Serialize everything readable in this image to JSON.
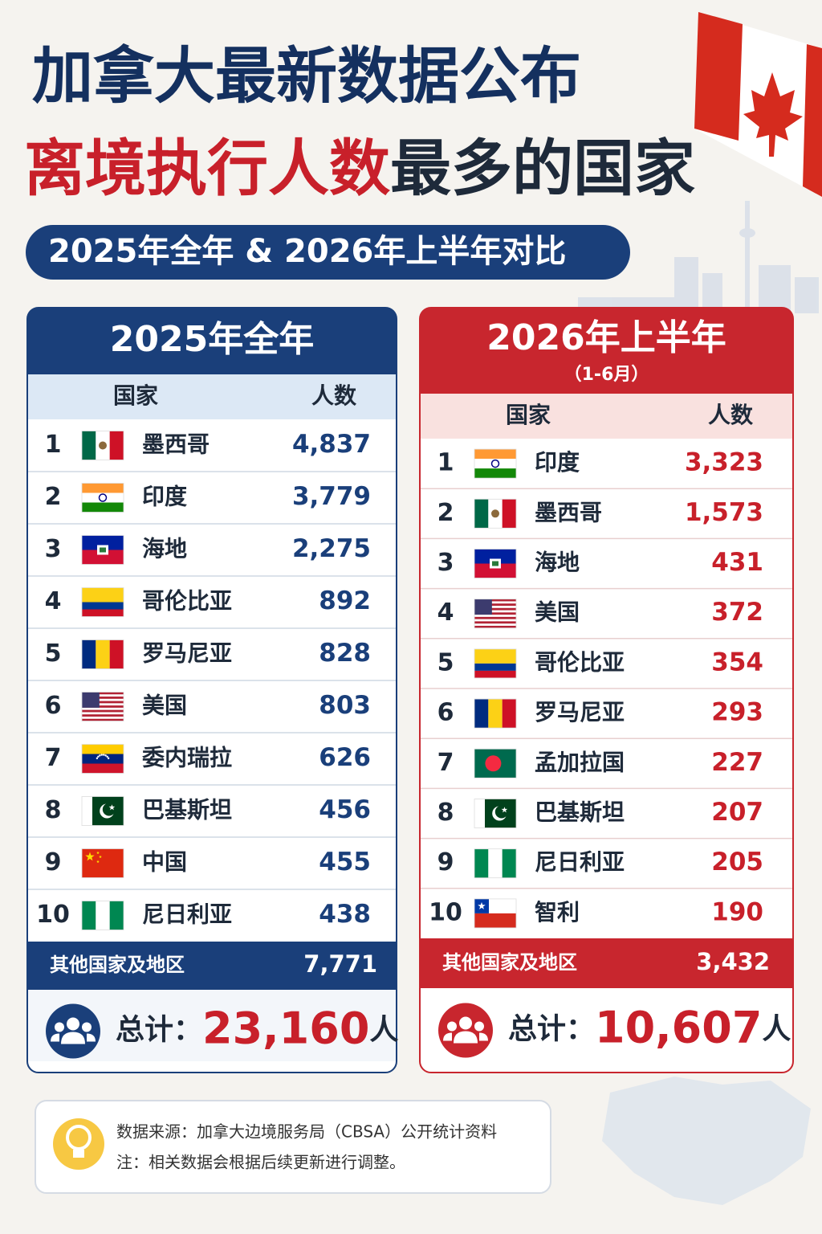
{
  "header": {
    "title_line1": "加拿大最新数据公布",
    "title_line2_highlight": "离境执行人数",
    "title_line2_rest": "最多的国家",
    "subtitle": "2025年全年 & 2026年上半年对比"
  },
  "tables": [
    {
      "title": "2025年全年",
      "columns": [
        "国家",
        "人数"
      ],
      "rows": [
        [
          1,
          "墨西哥",
          "4,837"
        ],
        [
          2,
          "印度",
          "3,779"
        ],
        [
          3,
          "海地",
          "2,275"
        ],
        [
          4,
          "哥伦比亚",
          "892"
        ],
        [
          5,
          "罗马尼亚",
          "828"
        ],
        [
          6,
          "美国",
          "803"
        ],
        [
          7,
          "委内瑞拉",
          "626"
        ],
        [
          8,
          "巴基斯坦",
          "456"
        ],
        [
          9,
          "中国",
          "455"
        ],
        [
          10,
          "尼日利亚",
          "438"
        ]
      ],
      "others": {
        "label": "其他国家及地区",
        "value": "7,771"
      },
      "total": {
        "label": "总计：",
        "value": "23,160",
        "unit": "人"
      }
    },
    {
      "title": "2026年上半年",
      "subtitle": "（1-6月）",
      "columns": [
        "国家",
        "人数"
      ],
      "rows": [
        [
          1,
          "印度",
          "3,323"
        ],
        [
          2,
          "墨西哥",
          "1,573"
        ],
        [
          3,
          "海地",
          "431"
        ],
        [
          4,
          "美国",
          "372"
        ],
        [
          5,
          "哥伦比亚",
          "354"
        ],
        [
          6,
          "罗马尼亚",
          "293"
        ],
        [
          7,
          "孟加拉国",
          "227"
        ],
        [
          8,
          "巴基斯坦",
          "207"
        ],
        [
          9,
          "尼日利亚",
          "205"
        ],
        [
          10,
          "智利",
          "190"
        ]
      ],
      "others": {
        "label": "其他国家及地区",
        "value": "3,432"
      },
      "total": {
        "label": "总计：",
        "value": "10,607",
        "unit": "人"
      }
    }
  ],
  "footer": {
    "source": "数据来源：加拿大边境服务局（CBSA）公开统计资料",
    "note": "注：相关数据会根据后续更新进行调整。"
  }
}
